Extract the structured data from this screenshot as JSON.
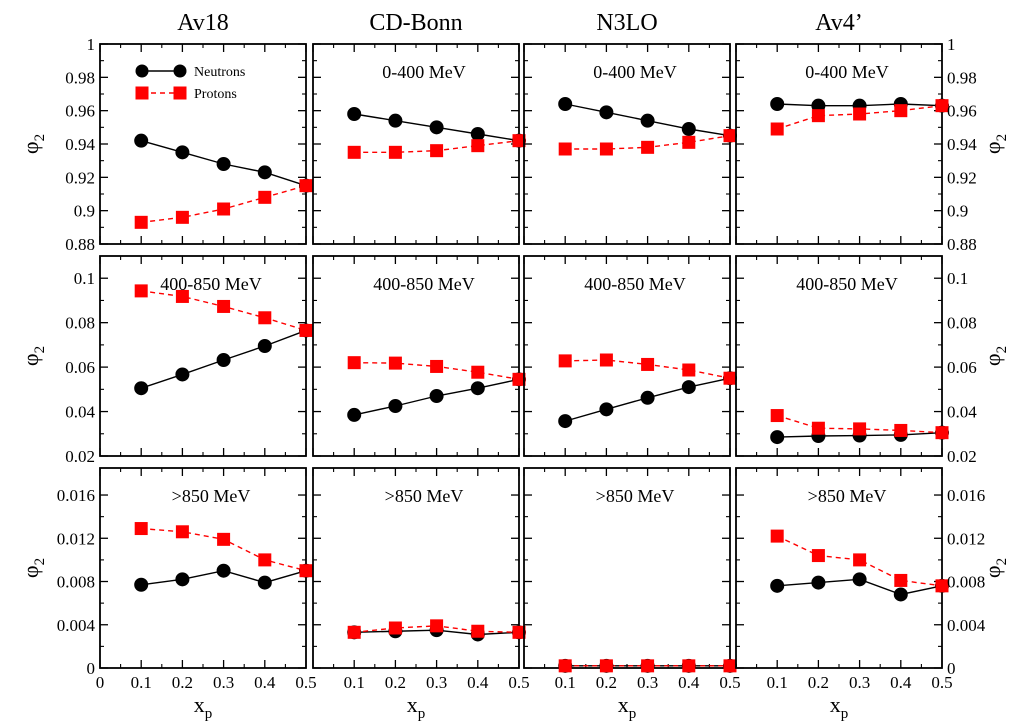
{
  "chart_data": {
    "type": "line",
    "column_titles": [
      "Av18",
      "CD-Bonn",
      "N3LO",
      "Av4’"
    ],
    "row_titles": [
      "0-400 MeV",
      "400-850 MeV",
      ">850 MeV"
    ],
    "xlabel": "x_p",
    "ylabel": "φ_2",
    "xlim": [
      0,
      0.5
    ],
    "x_ticks": [
      0,
      0.1,
      0.2,
      0.3,
      0.4,
      0.5
    ],
    "x_tick_labels": [
      "0",
      "0.1",
      "0.2",
      "0.3",
      "0.4",
      "0.5"
    ],
    "x": [
      0.1,
      0.2,
      0.3,
      0.4,
      0.5
    ],
    "legend": {
      "placement": "top-left of first panel",
      "entries": [
        {
          "name": "Neutrons",
          "color": "#000000",
          "marker": "circle",
          "line": "solid"
        },
        {
          "name": "Protons",
          "color": "#ff0000",
          "marker": "square",
          "line": "dashed"
        }
      ]
    },
    "rows": [
      {
        "ylim": [
          0.88,
          1.0
        ],
        "y_ticks": [
          0.88,
          0.9,
          0.92,
          0.94,
          0.96,
          0.98,
          1.0
        ],
        "y_tick_labels": [
          "0.88",
          "0.9",
          "0.92",
          "0.94",
          "0.96",
          "0.98",
          "1"
        ],
        "panels": [
          {
            "annotation": "",
            "neutrons": [
              0.942,
              0.935,
              0.928,
              0.923,
              0.915
            ],
            "protons": [
              0.893,
              0.896,
              0.901,
              0.908,
              0.915
            ]
          },
          {
            "annotation": "0-400 MeV",
            "neutrons": [
              0.958,
              0.954,
              0.95,
              0.946,
              0.942
            ],
            "protons": [
              0.935,
              0.935,
              0.936,
              0.939,
              0.942
            ]
          },
          {
            "annotation": "0-400 MeV",
            "neutrons": [
              0.964,
              0.959,
              0.954,
              0.949,
              0.945
            ],
            "protons": [
              0.937,
              0.937,
              0.938,
              0.941,
              0.945
            ]
          },
          {
            "annotation": "0-400 MeV",
            "neutrons": [
              0.964,
              0.963,
              0.963,
              0.964,
              0.963
            ],
            "protons": [
              0.949,
              0.957,
              0.958,
              0.96,
              0.963
            ]
          }
        ]
      },
      {
        "ylim": [
          0.02,
          0.11
        ],
        "y_ticks": [
          0.02,
          0.04,
          0.06,
          0.08,
          0.1
        ],
        "y_tick_labels": [
          "0.02",
          "0.04",
          "0.06",
          "0.08",
          "0.1"
        ],
        "panels": [
          {
            "annotation": "400-850 MeV",
            "neutrons": [
              0.0505,
              0.0567,
              0.0632,
              0.0695,
              0.0765
            ],
            "protons": [
              0.0943,
              0.0918,
              0.0873,
              0.0822,
              0.0765
            ]
          },
          {
            "annotation": "400-850 MeV",
            "neutrons": [
              0.0385,
              0.0425,
              0.047,
              0.0505,
              0.0545
            ],
            "protons": [
              0.062,
              0.0618,
              0.0603,
              0.0577,
              0.0545
            ]
          },
          {
            "annotation": "400-850 MeV",
            "neutrons": [
              0.0357,
              0.041,
              0.0462,
              0.051,
              0.055
            ],
            "protons": [
              0.0628,
              0.0632,
              0.0612,
              0.0587,
              0.055
            ]
          },
          {
            "annotation": "400-850 MeV",
            "neutrons": [
              0.0285,
              0.029,
              0.0292,
              0.0295,
              0.0305
            ],
            "protons": [
              0.0382,
              0.0325,
              0.0322,
              0.0315,
              0.0305
            ]
          }
        ]
      },
      {
        "ylim": [
          0,
          0.0185
        ],
        "y_ticks": [
          0,
          0.004,
          0.008,
          0.012,
          0.016
        ],
        "y_tick_labels": [
          "0",
          "0.004",
          "0.008",
          "0.012",
          "0.016"
        ],
        "panels": [
          {
            "annotation": ">850 MeV",
            "neutrons": [
              0.0077,
              0.0082,
              0.009,
              0.0079,
              0.009
            ],
            "protons": [
              0.0129,
              0.0126,
              0.0119,
              0.01,
              0.009
            ]
          },
          {
            "annotation": ">850 MeV",
            "neutrons": [
              0.0033,
              0.0034,
              0.0035,
              0.0031,
              0.0033
            ],
            "protons": [
              0.0033,
              0.0037,
              0.0039,
              0.0034,
              0.0033
            ]
          },
          {
            "annotation": ">850 MeV",
            "neutrons": [
              0.0002,
              0.0002,
              0.0002,
              0.0002,
              0.0002
            ],
            "protons": [
              0.0002,
              0.0002,
              0.0002,
              0.0002,
              0.0002
            ]
          },
          {
            "annotation": ">850 MeV",
            "neutrons": [
              0.0076,
              0.0079,
              0.0082,
              0.0068,
              0.0076
            ],
            "protons": [
              0.0122,
              0.0104,
              0.01,
              0.0081,
              0.0076
            ]
          }
        ]
      }
    ],
    "colors": {
      "neutrons": "#000000",
      "protons": "#ff0000"
    }
  }
}
